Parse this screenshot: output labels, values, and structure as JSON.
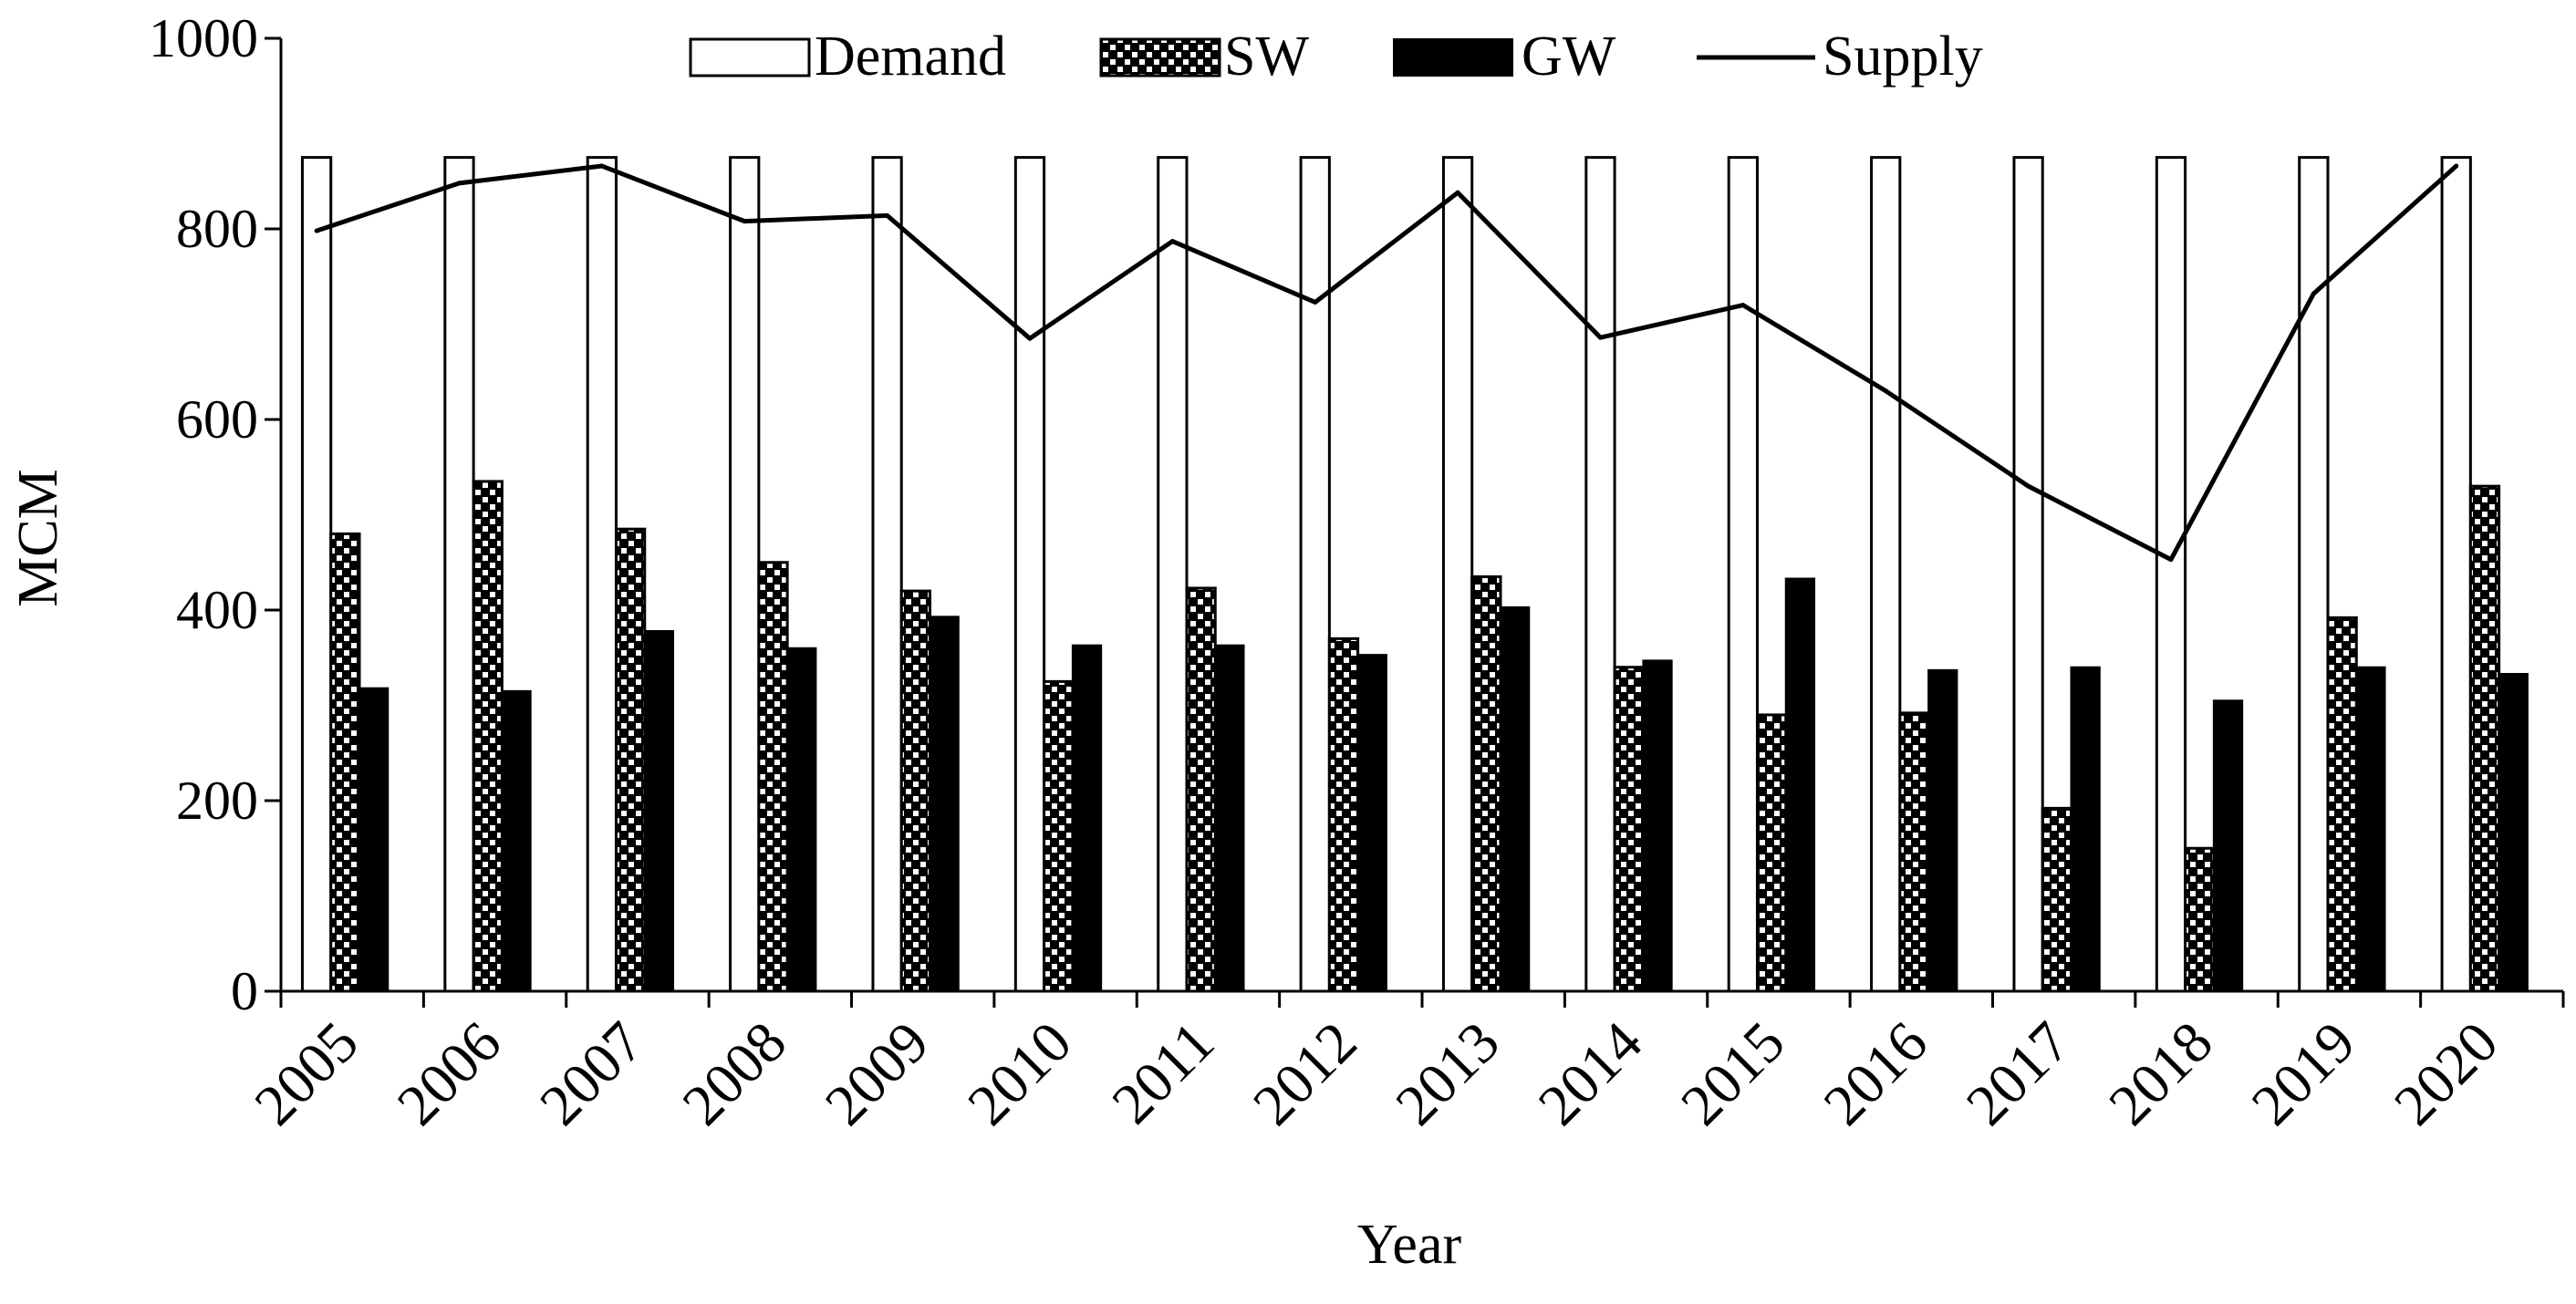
{
  "chart_data": {
    "type": "bar",
    "title": "",
    "xlabel": "Year",
    "ylabel": "MCM",
    "ylim": [
      0,
      1000
    ],
    "yticks": [
      0,
      200,
      400,
      600,
      800,
      1000
    ],
    "categories": [
      "2005",
      "2006",
      "2007",
      "2008",
      "2009",
      "2010",
      "2011",
      "2012",
      "2013",
      "2014",
      "2015",
      "2016",
      "2017",
      "2018",
      "2019",
      "2020"
    ],
    "series": [
      {
        "name": "Demand",
        "kind": "bar",
        "style": "hollow",
        "values": [
          875,
          875,
          875,
          875,
          875,
          875,
          875,
          875,
          875,
          875,
          875,
          875,
          875,
          875,
          875,
          875
        ]
      },
      {
        "name": "SW",
        "kind": "bar",
        "style": "dotted",
        "values": [
          480,
          535,
          485,
          450,
          420,
          325,
          423,
          370,
          435,
          340,
          290,
          292,
          192,
          150,
          392,
          530
        ]
      },
      {
        "name": "GW",
        "kind": "bar",
        "style": "solid",
        "values": [
          318,
          315,
          378,
          360,
          393,
          363,
          363,
          353,
          403,
          347,
          433,
          337,
          340,
          305,
          340,
          333
        ]
      },
      {
        "name": "Supply",
        "kind": "line",
        "values": [
          798,
          848,
          866,
          808,
          814,
          685,
          787,
          723,
          838,
          686,
          720,
          630,
          530,
          453,
          732,
          866
        ]
      }
    ],
    "legend": {
      "position": "top",
      "entries": [
        "Demand",
        "SW",
        "GW",
        "Supply"
      ]
    }
  }
}
